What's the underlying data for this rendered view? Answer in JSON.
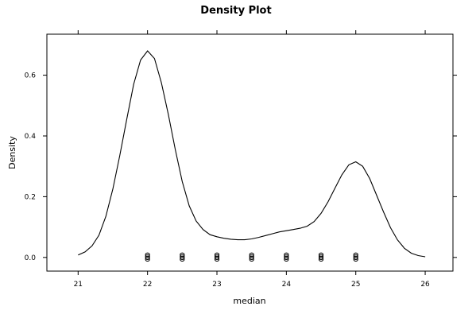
{
  "chart_data": {
    "type": "line",
    "title": "Density Plot",
    "xlabel": "median",
    "ylabel": "Density",
    "xlim": [
      20.55,
      26.4
    ],
    "ylim": [
      -0.045,
      0.735
    ],
    "xticks": [
      21,
      22,
      23,
      24,
      25,
      26
    ],
    "yticks": [
      0.0,
      0.2,
      0.4,
      0.6
    ],
    "xtick_labels": [
      "21",
      "22",
      "23",
      "24",
      "25",
      "26"
    ],
    "ytick_labels": [
      "0.0",
      "0.2",
      "0.4",
      "0.6"
    ],
    "grid": false,
    "series": [
      {
        "x": [
          21.0,
          21.1,
          21.2,
          21.3,
          21.4,
          21.5,
          21.6,
          21.7,
          21.8,
          21.9,
          22.0,
          22.1,
          22.2,
          22.3,
          22.4,
          22.5,
          22.6,
          22.7,
          22.8,
          22.9,
          23.0,
          23.1,
          23.2,
          23.3,
          23.4,
          23.5,
          23.6,
          23.7,
          23.8,
          23.9,
          24.0,
          24.1,
          24.2,
          24.3,
          24.4,
          24.5,
          24.6,
          24.7,
          24.8,
          24.9,
          25.0,
          25.1,
          25.2,
          25.3,
          25.4,
          25.5,
          25.6,
          25.7,
          25.8,
          25.9,
          26.0
        ],
        "values": [
          0.008,
          0.018,
          0.038,
          0.073,
          0.135,
          0.225,
          0.335,
          0.455,
          0.57,
          0.65,
          0.68,
          0.655,
          0.575,
          0.47,
          0.355,
          0.25,
          0.17,
          0.12,
          0.092,
          0.075,
          0.068,
          0.063,
          0.06,
          0.058,
          0.058,
          0.061,
          0.066,
          0.072,
          0.078,
          0.084,
          0.088,
          0.092,
          0.096,
          0.103,
          0.118,
          0.145,
          0.183,
          0.228,
          0.272,
          0.305,
          0.315,
          0.3,
          0.26,
          0.205,
          0.15,
          0.098,
          0.058,
          0.03,
          0.014,
          0.006,
          0.002
        ]
      }
    ],
    "rug": [
      22.0,
      22.5,
      23.0,
      23.5,
      24.0,
      24.5,
      25.0
    ]
  }
}
